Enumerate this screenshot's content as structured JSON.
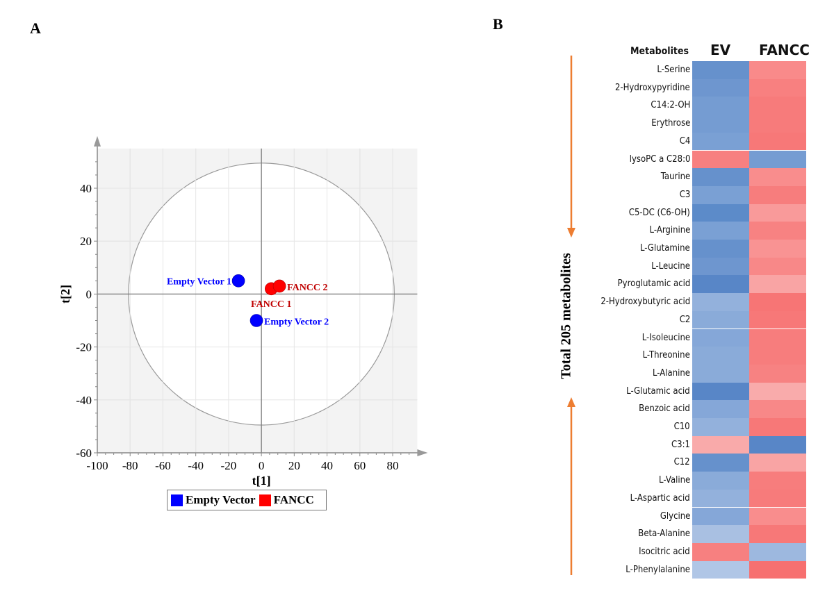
{
  "panels": {
    "a": "A",
    "b": "B"
  },
  "chart_data": [
    {
      "type": "scatter",
      "xlabel": "t[1]",
      "ylabel": "t[2]",
      "xlim": [
        -100,
        95
      ],
      "ylim": [
        -60,
        55
      ],
      "xticks": [
        -100,
        -80,
        -60,
        -40,
        -20,
        0,
        20,
        40,
        60,
        80
      ],
      "yticks": [
        -60,
        -40,
        -20,
        0,
        20,
        40
      ],
      "grid": true,
      "ellipse": {
        "rx": 81,
        "ry": 49.5
      },
      "legend_position": "bottom",
      "series": [
        {
          "name": "Empty Vector",
          "color": "#0000ff",
          "points": [
            {
              "label": "Empty Vector 1",
              "x": -14,
              "y": 5
            },
            {
              "label": "Empty Vector 2",
              "x": -3,
              "y": -10
            }
          ]
        },
        {
          "name": "FANCC",
          "color": "#ff0000",
          "label_color": "#c00000",
          "points": [
            {
              "label": "FANCC 1",
              "x": 6,
              "y": 2
            },
            {
              "label": "FANCC 2",
              "x": 11,
              "y": 3
            }
          ]
        }
      ]
    },
    {
      "type": "heatmap",
      "row_header": "Metabolites",
      "columns": [
        "EV",
        "FANCC"
      ],
      "side_label": "Total 205 metabolites",
      "arrow_color": "#ed7d31",
      "rows": [
        {
          "name": "L-Serine",
          "colors": [
            "#6691cc",
            "#f98a8a"
          ]
        },
        {
          "name": "2-Hydroxypyridine",
          "colors": [
            "#6e96cf",
            "#f88080"
          ]
        },
        {
          "name": "C14:2-OH",
          "colors": [
            "#759cd2",
            "#f77b7b"
          ]
        },
        {
          "name": "Erythrose",
          "colors": [
            "#759cd2",
            "#f77b7b"
          ]
        },
        {
          "name": "C4",
          "colors": [
            "#7aa0d4",
            "#f77878"
          ]
        },
        {
          "name": "lysoPC a C28:0",
          "colors": [
            "#f78080",
            "#759cd2"
          ]
        },
        {
          "name": "Taurine",
          "colors": [
            "#6691cc",
            "#f98d8d"
          ]
        },
        {
          "name": "C3",
          "colors": [
            "#7aa0d4",
            "#f77d7d"
          ]
        },
        {
          "name": "C5-DC (C6-OH)",
          "colors": [
            "#5c8bc9",
            "#f99a9a"
          ]
        },
        {
          "name": "L-Arginine",
          "colors": [
            "#7aa0d4",
            "#f78282"
          ]
        },
        {
          "name": "L-Glutamine",
          "colors": [
            "#6691cc",
            "#f99393"
          ]
        },
        {
          "name": "L-Leucine",
          "colors": [
            "#6e96cf",
            "#f88888"
          ]
        },
        {
          "name": "Pyroglutamic acid",
          "colors": [
            "#5886c7",
            "#f9a4a4"
          ]
        },
        {
          "name": "2-Hydroxybutyric acid",
          "colors": [
            "#93b1dc",
            "#f77575"
          ]
        },
        {
          "name": "C2",
          "colors": [
            "#8aabd9",
            "#f77878"
          ]
        },
        {
          "name": "L-Isoleucine",
          "colors": [
            "#85a7d8",
            "#f77d7d"
          ]
        },
        {
          "name": "L-Threonine",
          "colors": [
            "#8aabd9",
            "#f77d7d"
          ]
        },
        {
          "name": "L-Alanine",
          "colors": [
            "#8aabd9",
            "#f78282"
          ]
        },
        {
          "name": "L-Glutamic acid",
          "colors": [
            "#5886c7",
            "#f9abab"
          ]
        },
        {
          "name": "Benzoic acid",
          "colors": [
            "#85a7d8",
            "#f88888"
          ]
        },
        {
          "name": "C10",
          "colors": [
            "#93b1dc",
            "#f77878"
          ]
        },
        {
          "name": "C3:1",
          "colors": [
            "#f9aaaa",
            "#5886c7"
          ]
        },
        {
          "name": "C12",
          "colors": [
            "#6691cc",
            "#f9a4a4"
          ]
        },
        {
          "name": "L-Valine",
          "colors": [
            "#8aabd9",
            "#f77d7d"
          ]
        },
        {
          "name": "L-Aspartic acid",
          "colors": [
            "#93b1dc",
            "#f77b7b"
          ]
        },
        {
          "name": "Glycine",
          "colors": [
            "#85a7d8",
            "#f98d8d"
          ]
        },
        {
          "name": "Beta-Alanine",
          "colors": [
            "#a9c0e2",
            "#f77878"
          ]
        },
        {
          "name": "Isocitric acid",
          "colors": [
            "#f78080",
            "#9db8df"
          ]
        },
        {
          "name": "L-Phenylalanine",
          "colors": [
            "#b0c6e6",
            "#f77070"
          ]
        }
      ]
    }
  ]
}
